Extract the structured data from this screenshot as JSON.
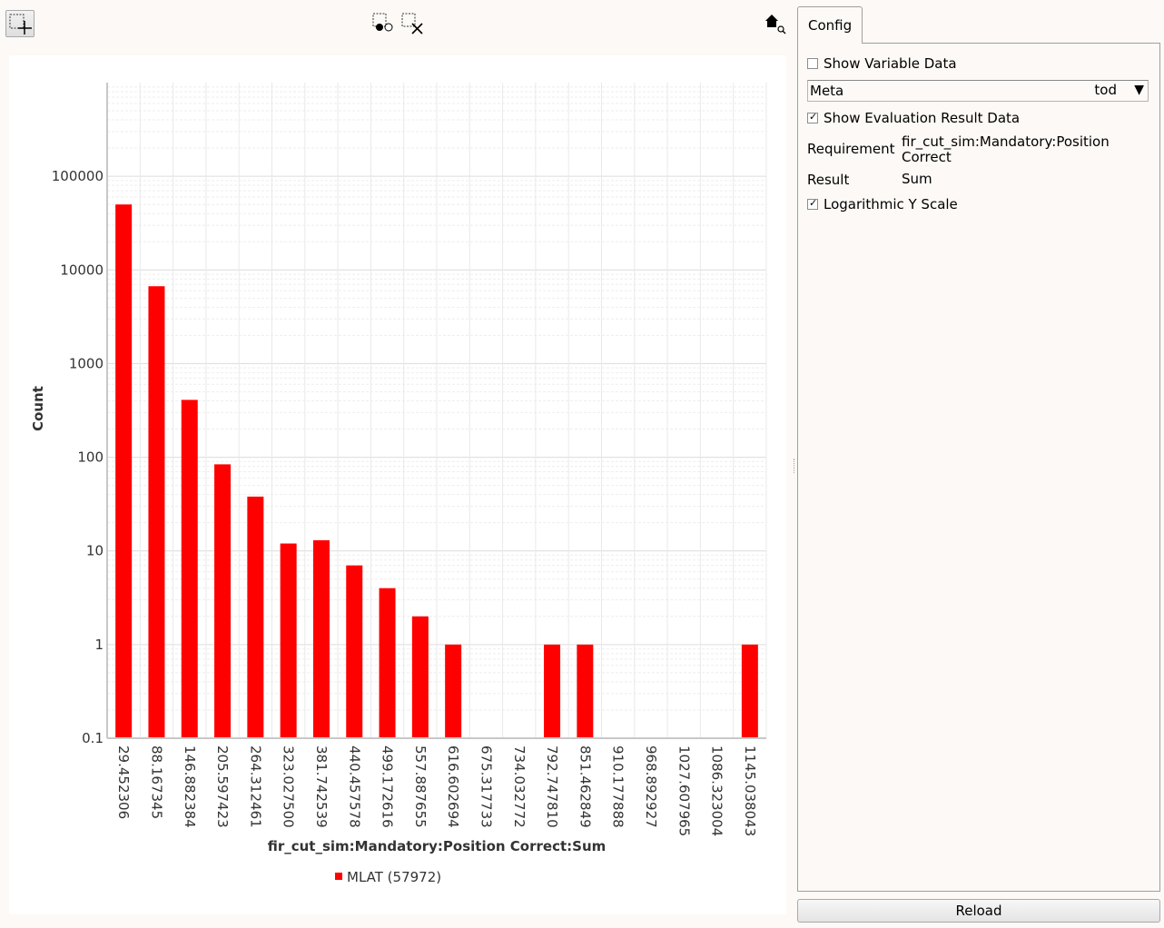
{
  "toolbar": {
    "zoom_icon": "zoom-rect-icon",
    "select_icon": "select-rect-icon",
    "clear_icon": "clear-selection-icon",
    "home_icon": "home-zoom-icon"
  },
  "panel": {
    "tab_label": "Config",
    "show_variable_data": "Show Variable Data",
    "show_variable_checked": false,
    "meta_label": "Meta",
    "meta_value": "tod",
    "show_eval_result": "Show Evaluation Result Data",
    "show_eval_checked": true,
    "requirement_label": "Requirement",
    "requirement_value": "fir_cut_sim:Mandatory:Position Correct",
    "result_label": "Result",
    "result_value": "Sum",
    "log_scale": "Logarithmic Y Scale",
    "log_scale_checked": true,
    "reload_label": "Reload"
  },
  "chart_data": {
    "type": "bar",
    "ylabel": "Count",
    "xlabel": "fir_cut_sim:Mandatory:Position Correct:Sum",
    "y_scale": "log",
    "ylim": [
      0.1,
      1000000
    ],
    "y_ticks": [
      "0.1",
      "1",
      "10",
      "100",
      "1000",
      "10000",
      "100000"
    ],
    "color": "#ff0000",
    "grid": true,
    "legend_position": "bottom",
    "categories": [
      "29.452306",
      "88.167345",
      "146.882384",
      "205.597423",
      "264.312461",
      "323.027500",
      "381.742539",
      "440.457578",
      "499.172616",
      "557.887655",
      "616.602694",
      "675.317733",
      "734.032772",
      "792.747810",
      "851.462849",
      "910.177888",
      "968.892927",
      "1027.607965",
      "1086.323004",
      "1145.038043"
    ],
    "series": [
      {
        "name": "MLAT (57972)",
        "values": [
          50000,
          6700,
          410,
          84,
          38,
          12,
          13,
          7,
          4,
          2,
          1,
          0,
          0,
          1,
          1,
          0,
          0,
          0,
          0,
          1
        ]
      }
    ]
  }
}
